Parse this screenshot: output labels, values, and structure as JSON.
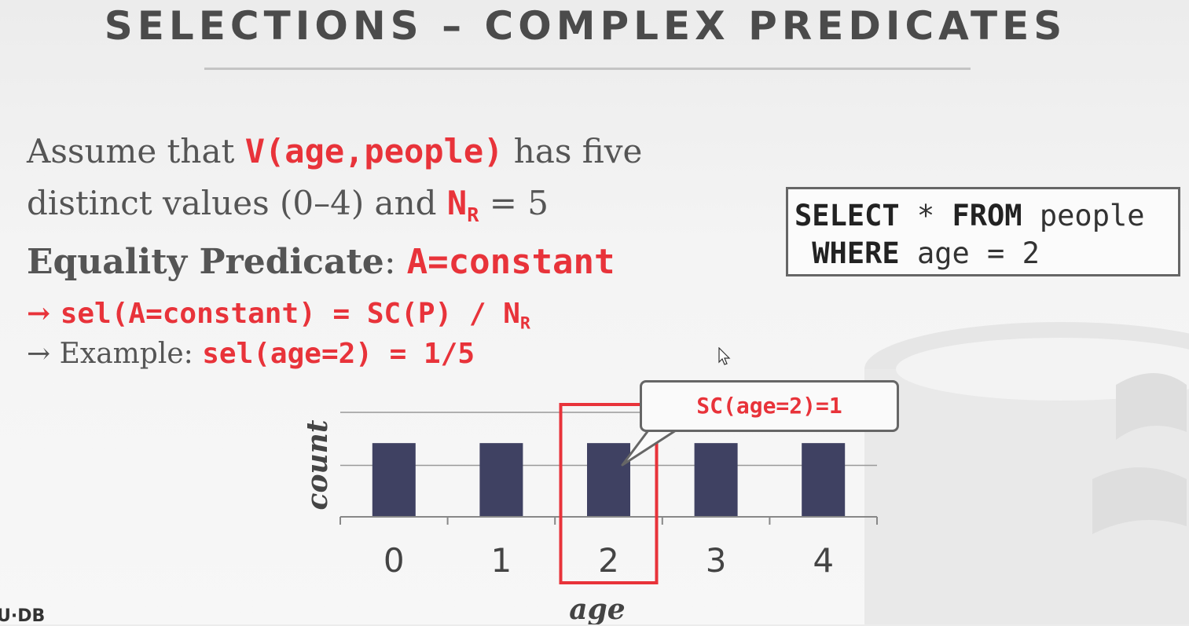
{
  "slide": {
    "title": "SELECTIONS – COMPLEX PREDICATES",
    "line1": {
      "prefix": "Assume that ",
      "code": "V(age,people)",
      "suffix": " has five"
    },
    "line2": {
      "prefix": "distinct values (0–4) and ",
      "code": "N",
      "sub": "R",
      "suffix": " = 5"
    },
    "line3": {
      "label": "Equality Predicate",
      "sep": ": ",
      "code": "A=constant"
    },
    "line4": {
      "arrow": "→ ",
      "code": "sel(A=constant) = SC(P) / N",
      "sub": "R"
    },
    "line5": {
      "arrow": "→ ",
      "label": "Example: ",
      "code": "sel(age=2) = 1/5"
    },
    "footer": "U·DB"
  },
  "sql": {
    "l1_kw1": "SELECT",
    "l1_mid": " * ",
    "l1_kw2": "FROM",
    "l1_rest": " people",
    "l2_kw": "WHERE",
    "l2_rest": " age = 2"
  },
  "callout": {
    "text": "SC(age=2)=1"
  },
  "colors": {
    "accent": "#e8333a",
    "bar": "#3f4162",
    "text": "#555555"
  },
  "chart_data": {
    "type": "bar",
    "categories": [
      "0",
      "1",
      "2",
      "3",
      "4"
    ],
    "values": [
      1,
      1,
      1,
      1,
      1
    ],
    "xlabel": "age",
    "ylabel": "count",
    "ylim": [
      0,
      1.4
    ],
    "grid": true,
    "highlight_category": "2"
  }
}
